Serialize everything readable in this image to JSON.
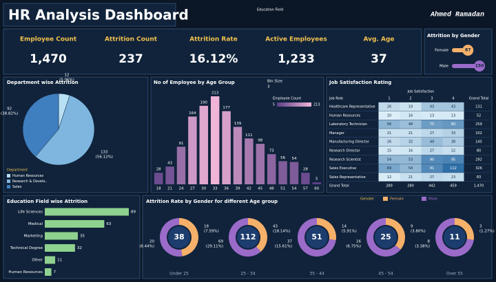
{
  "header": {
    "title": "HR Analysis Dashboard",
    "filter": "Education Field",
    "author": "Ahmed Ramadan"
  },
  "kpis": [
    {
      "label": "Employee Count",
      "value": "1,470"
    },
    {
      "label": "Attrition Count",
      "value": "237"
    },
    {
      "label": "Attrition Rate",
      "value": "16.12%"
    },
    {
      "label": "Active Employees",
      "value": "1,233"
    },
    {
      "label": "Avg. Age",
      "value": "37"
    }
  ],
  "table": {
    "title": "Job Satisfaction Rating",
    "group_header": "Job Satisfaction",
    "columns": [
      "Job Role",
      "1",
      "2",
      "3",
      "4",
      "Grand Total"
    ],
    "rows": [
      [
        "Healthcare Representative",
        26,
        19,
        43,
        43,
        131
      ],
      [
        "Human Resources",
        10,
        16,
        13,
        13,
        52
      ],
      [
        "Laboratory Technician",
        56,
        48,
        75,
        80,
        259
      ],
      [
        "Manager",
        21,
        21,
        27,
        33,
        102
      ],
      [
        "Manufacturing Director",
        26,
        32,
        49,
        38,
        145
      ],
      [
        "Research Director",
        15,
        16,
        27,
        22,
        80
      ],
      [
        "Research Scientist",
        54,
        53,
        90,
        95,
        292
      ],
      [
        "Sales Executive",
        69,
        54,
        91,
        112,
        326
      ],
      [
        "Sales Representative",
        12,
        21,
        27,
        23,
        83
      ],
      [
        "Grand Total",
        289,
        280,
        442,
        459,
        "1,470"
      ]
    ]
  },
  "chart_data": [
    {
      "type": "bar",
      "orientation": "horizontal",
      "title": "Attrition by Gender",
      "categories": [
        "Female",
        "Male"
      ],
      "values": [
        87,
        150
      ],
      "colors": [
        "#f5b06a",
        "#9b6bc9"
      ]
    },
    {
      "type": "pie",
      "title": "Department wise Attrition",
      "legend_title": "Department",
      "categories": [
        "Human Resources",
        "Research & Develo..",
        "Sales"
      ],
      "values": [
        12,
        133,
        92
      ],
      "percent_labels": [
        "(5.06%)",
        "(56.12%)",
        "(38.82%)"
      ],
      "colors": [
        "#b8e0f4",
        "#7fb6df",
        "#3f7fbf"
      ]
    },
    {
      "type": "bar",
      "orientation": "vertical",
      "title": "No of Employee by Age Group",
      "bin_size_label": "Bin Size",
      "bin_size": 3,
      "color_scale_title": "Employee Count",
      "color_scale": [
        5,
        213
      ],
      "colors": [
        "#5b3f86",
        "#f0b4d8"
      ],
      "categories": [
        "18",
        "21",
        "24",
        "27",
        "30",
        "33",
        "36",
        "39",
        "42",
        "45",
        "48",
        "51",
        "54",
        "57",
        "60"
      ],
      "values": [
        28,
        43,
        91,
        164,
        190,
        213,
        177,
        139,
        111,
        98,
        73,
        56,
        54,
        28,
        5
      ]
    },
    {
      "type": "bar",
      "orientation": "horizontal",
      "title": "Education Field wise Attrition",
      "categories": [
        "Life Sciences",
        "Medical",
        "Marketing",
        "Technical Degree",
        "Other",
        "Human Resources"
      ],
      "values": [
        89,
        63,
        35,
        32,
        11,
        7
      ],
      "color": "#8fd18f"
    },
    {
      "type": "donut",
      "title": "Attrition Rate by Gender for different Age group",
      "legend_title": "Gender",
      "categories": [
        "Under 25",
        "25 - 34",
        "35 - 44",
        "45 - 54",
        "Over 55"
      ],
      "totals": [
        38,
        112,
        51,
        25,
        11
      ],
      "series": [
        {
          "name": "Female",
          "color": "#f5b06a",
          "values": [
            18,
            43,
            14,
            9,
            3
          ],
          "percent_labels": [
            "(7.59%)",
            "(18.14%)",
            "(5.91%)",
            "(3.80%)",
            "(1.27%)"
          ]
        },
        {
          "name": "Male",
          "color": "#9b6bc9",
          "values": [
            20,
            69,
            37,
            16,
            8
          ],
          "percent_labels": [
            "(8.44%)",
            "(29.11%)",
            "(15.61%)",
            "(6.75%)",
            "(3.38%)"
          ]
        }
      ]
    }
  ]
}
